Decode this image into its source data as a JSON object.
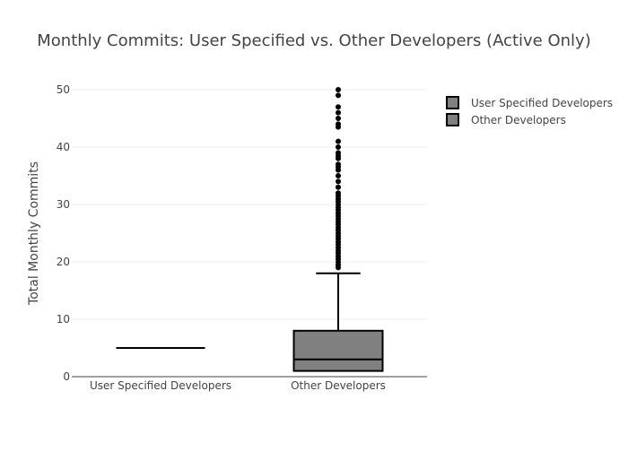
{
  "chart_data": {
    "type": "box",
    "title": "Monthly Commits: User Specified vs. Other Developers (Active Only)",
    "xlabel": "",
    "ylabel": "Total Monthly Commits",
    "ylim": [
      0,
      50
    ],
    "yticks": [
      0,
      10,
      20,
      30,
      40,
      50
    ],
    "grid": true,
    "legend_position": "top-right",
    "categories": [
      "User Specified Developers",
      "Other Developers"
    ],
    "series": [
      {
        "name": "User Specified Developers",
        "category": "User Specified Developers",
        "color": "#808080",
        "min": 5,
        "q1": 5,
        "median": 5,
        "q3": 5,
        "max": 5,
        "outliers": []
      },
      {
        "name": "Other Developers",
        "category": "Other Developers",
        "color": "#808080",
        "min": 1,
        "q1": 1,
        "median": 3,
        "q3": 8,
        "max": 18,
        "outliers": [
          19,
          19.5,
          20,
          20.5,
          21,
          21.5,
          22,
          22.5,
          23,
          23.5,
          24,
          24.5,
          25,
          25.5,
          26,
          26.5,
          27,
          27.5,
          28,
          28.5,
          29,
          29.5,
          30,
          30.5,
          31,
          31.5,
          32,
          33,
          34,
          35,
          36,
          36.5,
          37,
          38,
          38.5,
          39,
          40,
          41,
          43.5,
          44,
          45,
          46,
          47,
          49,
          50
        ]
      }
    ]
  }
}
